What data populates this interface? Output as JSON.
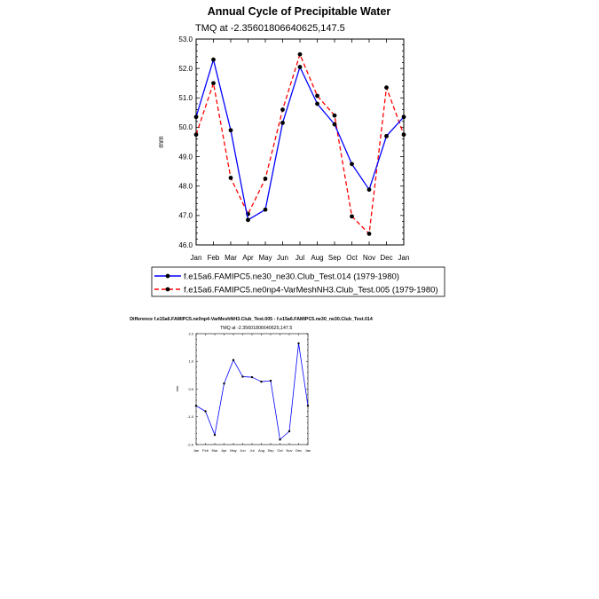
{
  "chart_data": [
    {
      "type": "line",
      "title": "Annual Cycle of Precipitable Water",
      "subtitle": "TMQ at -2.35601806640625,147.5",
      "xlabel": "",
      "ylabel": "mm",
      "categories": [
        "Jan",
        "Feb",
        "Mar",
        "Apr",
        "May",
        "Jun",
        "Jul",
        "Aug",
        "Sep",
        "Oct",
        "Nov",
        "Dec",
        "Jan"
      ],
      "ylim": [
        46.0,
        53.0
      ],
      "yticks": [
        "46.0",
        "47.0",
        "48.0",
        "49.0",
        "50.0",
        "51.0",
        "52.0",
        "53.0"
      ],
      "legend_position": "bottom",
      "series": [
        {
          "name": "f.e15a6.FAMIPC5.ne30_ne30.Club_Test.014 (1979-1980)",
          "color": "#0000ff",
          "dash": "solid",
          "values": [
            50.35,
            52.3,
            49.9,
            46.85,
            47.2,
            50.15,
            52.05,
            50.8,
            50.1,
            48.75,
            47.88,
            49.7,
            50.35
          ]
        },
        {
          "name": "f.e15a6.FAMIPC5.ne0np4-VarMeshNH3.Club_Test.005 (1979-1980)",
          "color": "#ff0000",
          "dash": "dashed",
          "values": [
            49.75,
            51.5,
            48.28,
            47.05,
            48.25,
            50.6,
            52.48,
            51.07,
            50.4,
            46.97,
            46.38,
            51.35,
            49.75
          ]
        }
      ]
    },
    {
      "type": "line",
      "title": "Difference f.e15a6.FAMIPC5.ne0np4-VarMeshNH3.Club_Test.005 - f.e15a6.FAMIPC5.ne30_ne30.Club_Test.014",
      "subtitle": "TMQ at -2.35601806640625,147.5",
      "xlabel": "",
      "ylabel": "mm",
      "categories": [
        "Jan",
        "Feb",
        "Mar",
        "Apr",
        "May",
        "Jun",
        "Jul",
        "Aug",
        "Sep",
        "Oct",
        "Nov",
        "Dec",
        "Jan"
      ],
      "ylim": [
        -2.0,
        2.0
      ],
      "yticks": [
        "-2.0",
        "-1.0",
        "0.0",
        "1.0",
        "2.0"
      ],
      "series": [
        {
          "name": "",
          "color": "#0000ff",
          "dash": "solid",
          "values": [
            -0.6,
            -0.8,
            -1.65,
            0.2,
            1.05,
            0.45,
            0.43,
            0.27,
            0.3,
            -1.82,
            -1.52,
            1.65,
            -0.6
          ]
        }
      ]
    }
  ]
}
